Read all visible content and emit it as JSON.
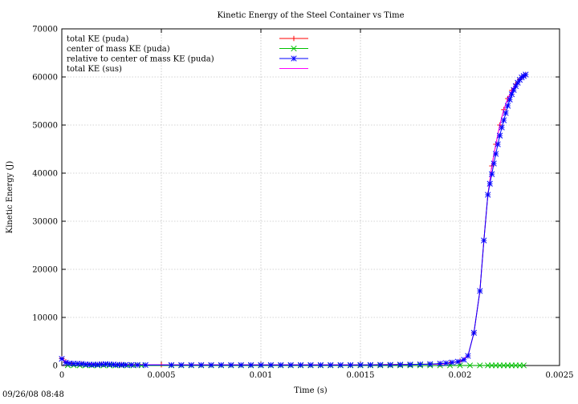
{
  "chart_data": {
    "type": "line",
    "title": "Kinetic Energy of the Steel Container vs Time",
    "xlabel": "Time (s)",
    "ylabel": "Kinetic Energy (J)",
    "xlim": [
      0,
      0.0025
    ],
    "ylim": [
      0,
      70000
    ],
    "x_ticks": [
      0,
      0.0005,
      0.001,
      0.0015,
      0.002,
      0.0025
    ],
    "x_tick_labels": [
      "0",
      "0.0005",
      "0.001",
      "0.0015",
      "0.002",
      "0.0025"
    ],
    "y_ticks": [
      0,
      10000,
      20000,
      30000,
      40000,
      50000,
      60000,
      70000
    ],
    "y_tick_labels": [
      "0",
      "10000",
      "20000",
      "30000",
      "40000",
      "50000",
      "60000",
      "70000"
    ],
    "grid": true,
    "legend_position": "top-left",
    "series": [
      {
        "name": "total KE (puda)",
        "color": "#ff0000",
        "marker": "plus",
        "x": [
          0,
          2e-05,
          5e-05,
          0.0001,
          0.0002,
          0.0003,
          0.0005,
          0.001,
          0.0015,
          0.0019,
          0.00195,
          0.002,
          0.00204,
          0.00207,
          0.0021,
          0.00212,
          0.00214,
          0.00216,
          0.00218,
          0.0022,
          0.00222,
          0.00224,
          0.00226,
          0.00228,
          0.0023,
          0.00232,
          0.00233
        ],
        "y": [
          1500,
          800,
          400,
          350,
          300,
          200,
          150,
          150,
          150,
          300,
          500,
          900,
          2000,
          6800,
          15500,
          26000,
          35500,
          41500,
          46000,
          50000,
          53200,
          55500,
          57200,
          58500,
          59500,
          60200,
          60500
        ]
      },
      {
        "name": "center of mass KE (puda)",
        "color": "#00c000",
        "marker": "cross",
        "x": [
          3e-05,
          6e-05,
          9e-05,
          0.00012,
          0.00015,
          0.00018,
          0.00021,
          0.00024,
          0.00027,
          0.0003,
          0.00033,
          0.00036,
          0.0004,
          0.00055,
          0.0006,
          0.00065,
          0.0007,
          0.00075,
          0.0008,
          0.00085,
          0.0009,
          0.00095,
          0.001,
          0.00105,
          0.0011,
          0.00115,
          0.0012,
          0.00125,
          0.0013,
          0.00135,
          0.0014,
          0.00145,
          0.0015,
          0.00155,
          0.0016,
          0.00165,
          0.0017,
          0.00175,
          0.0018,
          0.00185,
          0.0019,
          0.00195,
          0.002,
          0.00205,
          0.0021,
          0.00214,
          0.00216,
          0.00218,
          0.0022,
          0.00222,
          0.00224,
          0.00226,
          0.00228,
          0.0023,
          0.00232
        ],
        "y": [
          50,
          40,
          30,
          30,
          30,
          20,
          20,
          20,
          20,
          20,
          20,
          20,
          20,
          20,
          20,
          20,
          20,
          20,
          20,
          20,
          20,
          20,
          20,
          20,
          20,
          20,
          20,
          20,
          20,
          20,
          20,
          20,
          20,
          20,
          20,
          20,
          20,
          20,
          20,
          20,
          20,
          20,
          20,
          20,
          20,
          20,
          20,
          20,
          20,
          20,
          20,
          20,
          20,
          20,
          20
        ]
      },
      {
        "name": "relative to center of mass KE (puda)",
        "color": "#0000ff",
        "marker": "star",
        "x": [
          0,
          2e-05,
          4e-05,
          6e-05,
          8e-05,
          0.0001,
          0.00012,
          0.00014,
          0.00016,
          0.00018,
          0.0002,
          0.00022,
          0.00024,
          0.00026,
          0.00028,
          0.0003,
          0.00032,
          0.00035,
          0.00038,
          0.00042,
          0.00055,
          0.0006,
          0.00065,
          0.0007,
          0.00075,
          0.0008,
          0.00085,
          0.0009,
          0.00095,
          0.001,
          0.00105,
          0.0011,
          0.00115,
          0.0012,
          0.00125,
          0.0013,
          0.00135,
          0.0014,
          0.00145,
          0.0015,
          0.00155,
          0.0016,
          0.00165,
          0.0017,
          0.00175,
          0.0018,
          0.00185,
          0.0019,
          0.00193,
          0.00196,
          0.00199,
          0.00202,
          0.00204,
          0.00207,
          0.0021,
          0.00212,
          0.00214,
          0.00215,
          0.00216,
          0.00217,
          0.00218,
          0.00219,
          0.0022,
          0.00221,
          0.00222,
          0.00223,
          0.00224,
          0.00225,
          0.00226,
          0.00227,
          0.00228,
          0.00229,
          0.0023,
          0.00231,
          0.00232,
          0.00233
        ],
        "y": [
          1400,
          600,
          450,
          400,
          380,
          350,
          250,
          200,
          180,
          200,
          250,
          300,
          250,
          200,
          150,
          150,
          120,
          120,
          120,
          100,
          100,
          100,
          100,
          100,
          100,
          100,
          100,
          100,
          100,
          100,
          100,
          100,
          100,
          100,
          100,
          100,
          100,
          100,
          100,
          120,
          120,
          150,
          150,
          180,
          200,
          250,
          300,
          400,
          500,
          650,
          800,
          1200,
          2000,
          6800,
          15500,
          26000,
          35500,
          37800,
          39800,
          42000,
          44000,
          46000,
          47800,
          49500,
          51000,
          52500,
          54000,
          55300,
          56400,
          57300,
          58100,
          58800,
          59400,
          59900,
          60200,
          60500
        ]
      },
      {
        "name": "total KE (sus)",
        "color": "#ff00ff",
        "marker": "none",
        "x": [
          0,
          2e-05,
          5e-05,
          0.0001,
          0.0002,
          0.0003,
          0.0005,
          0.001,
          0.0015,
          0.0019,
          0.00195,
          0.002,
          0.00204,
          0.00207,
          0.0021,
          0.00212,
          0.00214,
          0.00216,
          0.00218,
          0.0022,
          0.00222,
          0.00224,
          0.00226,
          0.00228,
          0.0023,
          0.00232,
          0.00233
        ],
        "y": [
          1500,
          800,
          400,
          350,
          300,
          200,
          150,
          150,
          150,
          300,
          500,
          900,
          2000,
          6800,
          15500,
          26000,
          35500,
          41500,
          46000,
          50000,
          53200,
          55500,
          57200,
          58500,
          59500,
          60200,
          60500
        ]
      }
    ]
  },
  "timestamp": "09/26/08 08:48"
}
